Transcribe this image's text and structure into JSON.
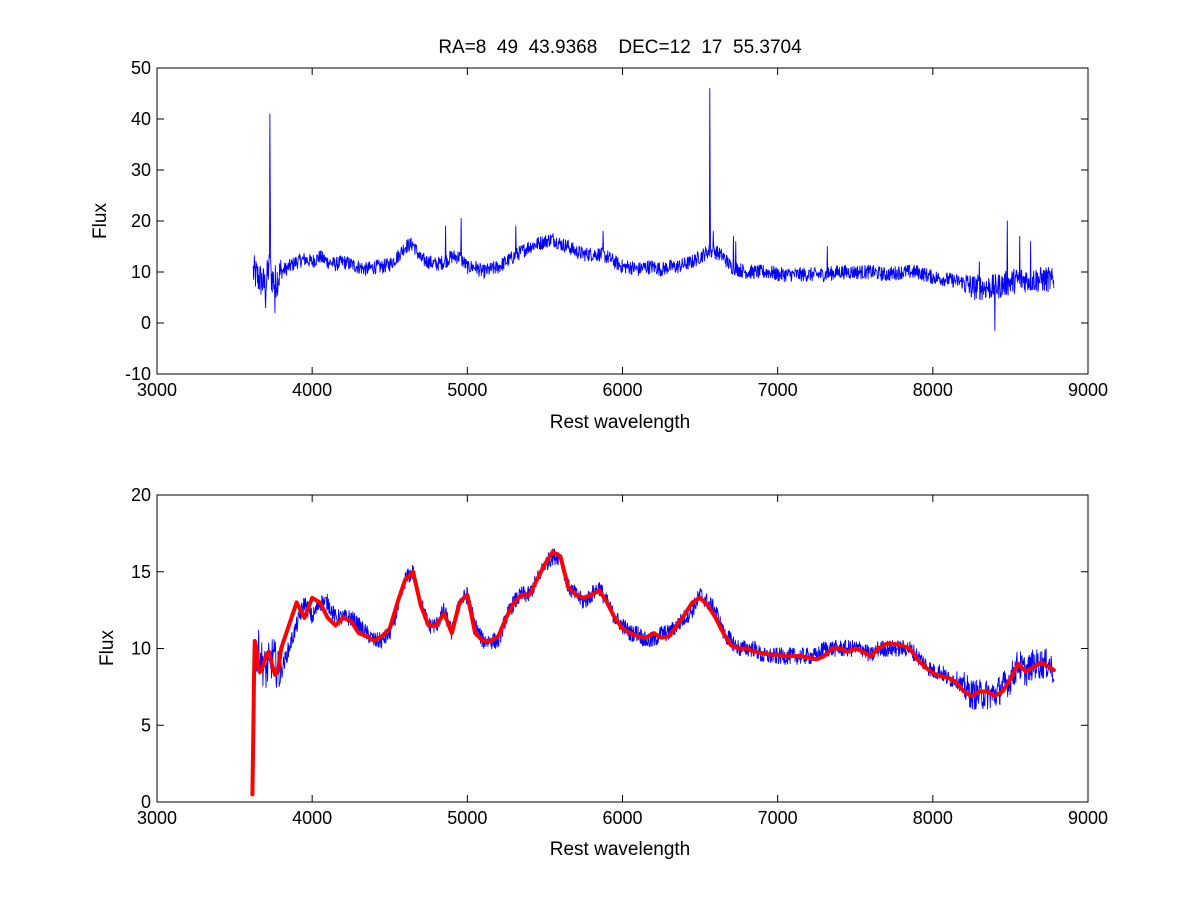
{
  "figure": {
    "title": "RA=8  49  43.9368    DEC=12  17  55.3704",
    "background": "#ffffff"
  },
  "chart_data": [
    {
      "type": "line",
      "panel": "top",
      "xlabel": "Rest wavelength",
      "ylabel": "Flux",
      "xlim": [
        3000,
        9000
      ],
      "ylim": [
        -10,
        50
      ],
      "xticks": [
        "3000",
        "4000",
        "5000",
        "6000",
        "7000",
        "8000",
        "9000"
      ],
      "yticks": [
        "-10",
        "0",
        "10",
        "20",
        "30",
        "40",
        "50"
      ],
      "grid": false,
      "series": [
        {
          "color": "#0000ff",
          "x": [
            3620,
            3650,
            3680,
            3700,
            3720,
            3740,
            3760,
            3780,
            3800,
            3850,
            3900,
            3950,
            4000,
            4050,
            4100,
            4150,
            4200,
            4250,
            4300,
            4350,
            4400,
            4450,
            4500,
            4550,
            4600,
            4650,
            4700,
            4750,
            4800,
            4850,
            4900,
            4950,
            5000,
            5050,
            5100,
            5150,
            5200,
            5250,
            5300,
            5350,
            5400,
            5450,
            5500,
            5550,
            5600,
            5650,
            5700,
            5750,
            5800,
            5850,
            5900,
            5950,
            6000,
            6050,
            6100,
            6150,
            6200,
            6250,
            6300,
            6350,
            6400,
            6450,
            6500,
            6550,
            6600,
            6650,
            6700,
            6750,
            6800,
            6850,
            6900,
            6950,
            7000,
            7100,
            7200,
            7300,
            7400,
            7500,
            7600,
            7700,
            7800,
            7900,
            8000,
            8100,
            8200,
            8250,
            8300,
            8350,
            8400,
            8450,
            8500,
            8550,
            8600,
            8650,
            8700,
            8750,
            8780
          ],
          "y": [
            10,
            9,
            8,
            7,
            11,
            9,
            8,
            9,
            10,
            11,
            12,
            12.5,
            12,
            13,
            12,
            11.5,
            12,
            11.5,
            11,
            10.5,
            11,
            11,
            11.5,
            13,
            15,
            15.5,
            12.5,
            12,
            11.5,
            12,
            13,
            13,
            11,
            11,
            10,
            10.5,
            11,
            12,
            13,
            14,
            15,
            15.5,
            16,
            16.5,
            15.5,
            15,
            14,
            13.5,
            13.5,
            13.5,
            13,
            12,
            11,
            11,
            10.5,
            11,
            11,
            10.5,
            11,
            11,
            11.5,
            12,
            13,
            14,
            14,
            13,
            11,
            10.5,
            10,
            10,
            10,
            10,
            9.5,
            9.5,
            9.5,
            9.5,
            10,
            10,
            10,
            9.5,
            10,
            10,
            9,
            8.5,
            8,
            7,
            7,
            7,
            7,
            7.5,
            8,
            8.5,
            8.5,
            8.5,
            8.5,
            8.5,
            8
          ],
          "spikes": [
            [
              3727,
              41
            ],
            [
              3729,
              25
            ],
            [
              4861,
              19
            ],
            [
              4959,
              20.5
            ],
            [
              5007,
              12
            ],
            [
              5313,
              19
            ],
            [
              5876,
              18
            ],
            [
              6563,
              46
            ],
            [
              6565,
              25
            ],
            [
              6584,
              18
            ],
            [
              6716,
              17
            ],
            [
              6731,
              16
            ],
            [
              7320,
              15
            ],
            [
              8480,
              20
            ],
            [
              8560,
              17
            ],
            [
              8630,
              16
            ],
            [
              8400,
              -1.5
            ],
            [
              8300,
              12
            ],
            [
              3760,
              2
            ],
            [
              3700,
              3
            ]
          ]
        }
      ]
    },
    {
      "type": "line",
      "panel": "bottom",
      "xlabel": "Rest wavelength",
      "ylabel": "Flux",
      "xlim": [
        3000,
        9000
      ],
      "ylim": [
        0,
        20
      ],
      "xticks": [
        "3000",
        "4000",
        "5000",
        "6000",
        "7000",
        "8000",
        "9000"
      ],
      "yticks": [
        "0",
        "5",
        "10",
        "15",
        "20"
      ],
      "grid": false,
      "series": [
        {
          "color": "#0000ff",
          "x": [
            3620,
            3650,
            3680,
            3700,
            3720,
            3750,
            3780,
            3800,
            3850,
            3900,
            3950,
            4000,
            4050,
            4100,
            4150,
            4200,
            4250,
            4300,
            4350,
            4400,
            4450,
            4500,
            4550,
            4600,
            4650,
            4700,
            4750,
            4800,
            4850,
            4900,
            4950,
            5000,
            5050,
            5100,
            5150,
            5200,
            5250,
            5300,
            5350,
            5400,
            5450,
            5500,
            5550,
            5600,
            5650,
            5700,
            5750,
            5800,
            5850,
            5900,
            5950,
            6000,
            6050,
            6100,
            6150,
            6200,
            6250,
            6300,
            6350,
            6400,
            6450,
            6500,
            6550,
            6600,
            6650,
            6700,
            6750,
            6800,
            6850,
            6900,
            6950,
            7000,
            7050,
            7100,
            7150,
            7200,
            7250,
            7300,
            7350,
            7400,
            7450,
            7500,
            7550,
            7600,
            7650,
            7700,
            7750,
            7800,
            7850,
            7900,
            7950,
            8000,
            8050,
            8100,
            8150,
            8200,
            8250,
            8300,
            8350,
            8400,
            8450,
            8500,
            8550,
            8600,
            8650,
            8700,
            8750,
            8780
          ],
          "y": [
            9,
            10,
            9,
            8.5,
            9,
            9.5,
            8.5,
            8.5,
            10,
            11.5,
            13,
            12,
            13,
            13,
            12,
            12,
            12,
            11.5,
            11,
            10.5,
            10.5,
            11,
            12.5,
            14.5,
            15,
            13,
            11.5,
            11.5,
            12.5,
            11,
            13,
            13.5,
            11.5,
            10.5,
            10.5,
            10.5,
            12,
            13,
            13.5,
            13.5,
            14.5,
            15.5,
            16,
            16,
            14,
            13.5,
            13,
            13.5,
            14,
            13,
            12,
            11.5,
            11,
            11,
            10.5,
            10.5,
            11,
            11,
            11.5,
            12,
            12.5,
            13.5,
            13,
            12.5,
            11,
            10.5,
            10,
            10,
            10,
            9.5,
            9.5,
            9.5,
            9.5,
            9.5,
            9.5,
            9.5,
            9.5,
            10,
            10,
            10,
            10,
            10,
            10,
            9.5,
            10,
            10,
            10,
            10,
            10,
            9.5,
            9,
            8.5,
            8.5,
            8,
            8,
            7.5,
            7,
            7,
            7,
            7,
            7.5,
            8,
            9,
            8.5,
            9,
            9,
            9,
            8.5
          ],
          "spikes": []
        },
        {
          "color": "#ff0000",
          "x": [
            3615,
            3620,
            3625,
            3630,
            3640,
            3650,
            3660,
            3670,
            3680,
            3700,
            3720,
            3740,
            3760,
            3780,
            3800,
            3850,
            3900,
            3950,
            4000,
            4050,
            4100,
            4150,
            4200,
            4250,
            4300,
            4350,
            4400,
            4450,
            4500,
            4550,
            4600,
            4650,
            4700,
            4750,
            4800,
            4850,
            4900,
            4950,
            5000,
            5050,
            5100,
            5150,
            5200,
            5250,
            5300,
            5350,
            5400,
            5450,
            5500,
            5550,
            5600,
            5650,
            5700,
            5750,
            5800,
            5850,
            5900,
            5950,
            6000,
            6050,
            6100,
            6150,
            6200,
            6250,
            6300,
            6350,
            6400,
            6450,
            6500,
            6550,
            6600,
            6650,
            6700,
            6750,
            6800,
            6850,
            6900,
            6950,
            7000,
            7050,
            7100,
            7150,
            7200,
            7250,
            7300,
            7350,
            7400,
            7450,
            7500,
            7550,
            7600,
            7650,
            7700,
            7750,
            7800,
            7850,
            7900,
            7950,
            8000,
            8050,
            8100,
            8150,
            8200,
            8250,
            8300,
            8350,
            8400,
            8450,
            8500,
            8550,
            8600,
            8650,
            8700,
            8750,
            8780
          ],
          "y": [
            0.5,
            4,
            8,
            10.5,
            10,
            9,
            8.5,
            8.5,
            8.8,
            9.5,
            9.8,
            9,
            8.3,
            8.5,
            10,
            11.5,
            13,
            12,
            13.3,
            13,
            12,
            11.5,
            12,
            11.8,
            11,
            10.8,
            10.5,
            10.8,
            11.3,
            13,
            14.5,
            15,
            12.8,
            11.5,
            11.5,
            12.3,
            11,
            13,
            13.5,
            11,
            10.5,
            10.5,
            10.8,
            12,
            13,
            13.5,
            13.5,
            14.5,
            15.5,
            16.3,
            16,
            14,
            13.5,
            13.3,
            13.5,
            13.8,
            13,
            12,
            11.3,
            11,
            10.8,
            10.7,
            11,
            10.7,
            10.8,
            11.5,
            12.2,
            13,
            13.3,
            12.8,
            12,
            11,
            10.2,
            10,
            10,
            9.8,
            9.7,
            9.6,
            9.6,
            9.5,
            9.5,
            9.5,
            9.4,
            9.3,
            9.5,
            10,
            10,
            9.8,
            10,
            9.8,
            9.5,
            10,
            10.3,
            10.3,
            10.2,
            10,
            9.3,
            8.8,
            8.4,
            8.2,
            8.1,
            7.8,
            7.2,
            6.9,
            7.2,
            7.2,
            6.9,
            7.2,
            8,
            9,
            8.5,
            8.8,
            9.1,
            8.8,
            8.6
          ]
        }
      ]
    }
  ]
}
